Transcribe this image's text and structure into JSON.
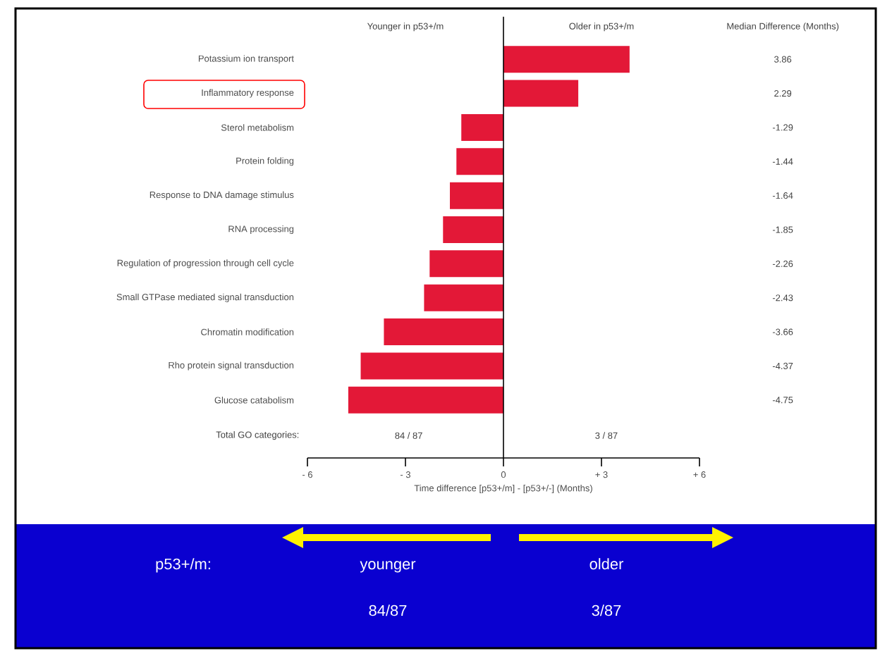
{
  "chart_data": {
    "type": "bar",
    "orientation": "horizontal",
    "xlabel": "Time difference [p53+/m] - [p53+/-] (Months)",
    "categories": [
      "Potassium ion transport",
      "Inflammatory response",
      "Sterol metabolism",
      "Protein folding",
      "Response to DNA damage stimulus",
      "RNA processing",
      "Regulation of progression through cell cycle",
      "Small GTPase mediated signal transduction",
      "Chromatin modification",
      "Rho protein signal transduction",
      "Glucose catabolism"
    ],
    "values": [
      3.86,
      2.29,
      -1.29,
      -1.44,
      -1.64,
      -1.85,
      -2.26,
      -2.43,
      -3.66,
      -4.37,
      -4.75
    ],
    "value_labels": [
      "3.86",
      "2.29",
      "-1.29",
      "-1.44",
      "-1.64",
      "-1.85",
      "-2.26",
      "-2.43",
      "-3.66",
      "-4.37",
      "-4.75"
    ],
    "color": "#e31837",
    "xlim": [
      -6,
      6
    ],
    "xticks": [
      {
        "value": -6,
        "label": "- 6"
      },
      {
        "value": -3,
        "label": "- 3"
      },
      0,
      {
        "value": 3,
        "label": "+ 3"
      },
      {
        "value": 6,
        "label": "+ 6"
      }
    ],
    "ref_lines": [
      {
        "axis": "x",
        "value": 0,
        "color": "#000000"
      }
    ],
    "annotations": [
      "Younger in p53+/m",
      "Older in p53+/m",
      "Median Difference (Months)",
      "Total GO categories:",
      "84 / 87",
      "3 / 87",
      "p53+/m:",
      "younger",
      "older",
      "84/87",
      "3/87"
    ],
    "grid": false
  }
}
